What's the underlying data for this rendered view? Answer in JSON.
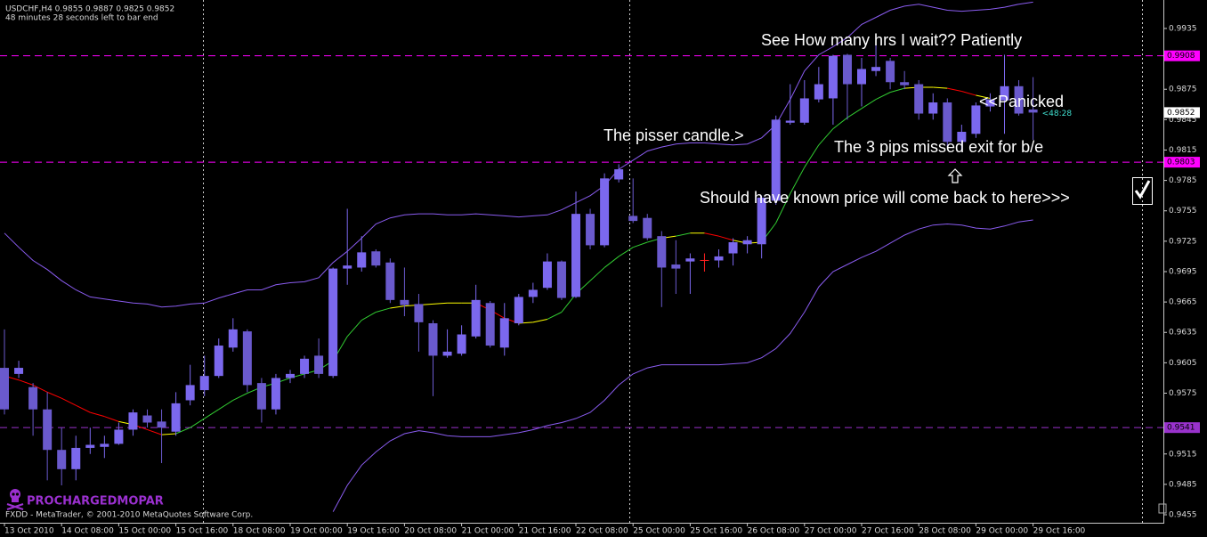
{
  "chart_data": {
    "type": "candlestick",
    "header": "USDCHF,H4  0.9855 0.9887 0.9825 0.9852",
    "countdown": "48 minutes 28 seconds left to bar end",
    "timer": "<48:28",
    "brand": "PROCHARGEDMOPAR",
    "copyright": "FXDD - MetaTrader, © 2001-2010 MetaQuotes Software Corp.",
    "annotations": [
      "See How many hrs I wait?? Patiently",
      "<<Panicked",
      "The pisser candle.>",
      "The 3 pips missed exit for b/e",
      "Should have known price will come back to here>>>"
    ],
    "categories": [
      "13 Oct 2010",
      null,
      null,
      null,
      "14 Oct 08:00",
      null,
      null,
      null,
      "15 Oct 00:00",
      null,
      null,
      null,
      "15 Oct 16:00",
      null,
      null,
      null,
      "18 Oct 08:00",
      null,
      null,
      null,
      "19 Oct 00:00",
      null,
      null,
      null,
      "19 Oct 16:00",
      null,
      null,
      null,
      "20 Oct 08:00",
      null,
      null,
      null,
      "21 Oct 00:00",
      null,
      null,
      null,
      "21 Oct 16:00",
      null,
      null,
      null,
      "22 Oct 08:00",
      null,
      null,
      null,
      "25 Oct 00:00",
      null,
      null,
      null,
      "25 Oct 16:00",
      null,
      null,
      null,
      "26 Oct 08:00",
      null,
      null,
      null,
      "27 Oct 00:00",
      null,
      null,
      null,
      "27 Oct 16:00",
      null,
      null,
      null,
      "28 Oct 08:00",
      null,
      null,
      null,
      "29 Oct 00:00",
      null,
      null,
      null,
      "29 Oct 16:00"
    ],
    "open": [
      0.96,
      0.9594,
      0.9581,
      0.9559,
      0.9519,
      0.95,
      0.9521,
      0.9522,
      0.9525,
      0.9539,
      0.9553,
      0.9547,
      0.9537,
      0.9568,
      0.9578,
      0.9592,
      0.962,
      0.9636,
      0.9585,
      0.9559,
      0.959,
      0.9594,
      0.9612,
      0.9592,
      0.9698,
      0.9699,
      0.9715,
      0.9704,
      0.9667,
      0.9663,
      0.9644,
      0.9612,
      0.9614,
      0.9631,
      0.9664,
      0.962,
      0.9644,
      0.967,
      0.9679,
      0.9705,
      0.967,
      0.9752,
      0.9721,
      0.9786,
      0.975,
      0.9748,
      0.973,
      0.9702,
      0.9705,
      0.9706,
      0.9706,
      0.9713,
      0.9722,
      0.9722,
      0.9765,
      0.9842,
      0.9842,
      0.9865,
      0.9866,
      0.9909,
      0.988,
      0.9893,
      0.9903,
      0.9882,
      0.988,
      0.9851,
      0.9862,
      0.9823,
      0.9831,
      0.9858,
      0.9864,
      0.9878,
      0.9855
    ],
    "high": [
      0.9638,
      0.9607,
      0.9585,
      0.9576,
      0.9541,
      0.9533,
      0.9541,
      0.9533,
      0.9546,
      0.9559,
      0.9559,
      0.9559,
      0.9576,
      0.9603,
      0.9612,
      0.9629,
      0.9649,
      0.9638,
      0.959,
      0.9594,
      0.9598,
      0.9612,
      0.9629,
      0.9699,
      0.9757,
      0.973,
      0.9717,
      0.9708,
      0.9699,
      0.9673,
      0.9647,
      0.9638,
      0.9642,
      0.9682,
      0.9666,
      0.9664,
      0.9673,
      0.9684,
      0.9713,
      0.9706,
      0.9774,
      0.9757,
      0.9792,
      0.9801,
      0.9787,
      0.9752,
      0.9735,
      0.9726,
      0.9713,
      0.9713,
      0.9717,
      0.9728,
      0.973,
      0.977,
      0.9849,
      0.988,
      0.9884,
      0.9897,
      0.9909,
      0.991,
      0.9906,
      0.9919,
      0.9906,
      0.9893,
      0.9884,
      0.9871,
      0.9866,
      0.984,
      0.9862,
      0.9871,
      0.9909,
      0.9884,
      0.9887
    ],
    "low": [
      0.9554,
      0.959,
      0.9533,
      0.9489,
      0.9484,
      0.9489,
      0.9515,
      0.9511,
      0.9524,
      0.9533,
      0.9541,
      0.9506,
      0.9533,
      0.9563,
      0.9572,
      0.959,
      0.9616,
      0.9576,
      0.9546,
      0.9554,
      0.9585,
      0.959,
      0.959,
      0.959,
      0.9682,
      0.9695,
      0.9699,
      0.9664,
      0.9651,
      0.9616,
      0.9572,
      0.961,
      0.9612,
      0.9629,
      0.962,
      0.9612,
      0.9642,
      0.9664,
      0.9677,
      0.9667,
      0.9669,
      0.9717,
      0.9719,
      0.9783,
      0.9743,
      0.9726,
      0.966,
      0.9673,
      0.9673,
      0.9695,
      0.9699,
      0.9701,
      0.9713,
      0.9708,
      0.9761,
      0.984,
      0.984,
      0.9862,
      0.984,
      0.9845,
      0.9858,
      0.9888,
      0.9875,
      0.9875,
      0.9845,
      0.9845,
      0.9818,
      0.9814,
      0.9827,
      0.9853,
      0.9831,
      0.9849,
      0.9825
    ],
    "close": [
      0.9559,
      0.96,
      0.9559,
      0.9519,
      0.95,
      0.9521,
      0.9524,
      0.9525,
      0.9539,
      0.9556,
      0.9546,
      0.9541,
      0.9565,
      0.9583,
      0.9592,
      0.9622,
      0.9638,
      0.9583,
      0.9559,
      0.959,
      0.9594,
      0.9609,
      0.9594,
      0.9698,
      0.9701,
      0.9714,
      0.9701,
      0.9667,
      0.9662,
      0.9645,
      0.9612,
      0.9616,
      0.9633,
      0.9667,
      0.9622,
      0.9649,
      0.967,
      0.9677,
      0.9705,
      0.9669,
      0.9752,
      0.9721,
      0.9787,
      0.9796,
      0.9745,
      0.9728,
      0.9699,
      0.9698,
      0.9708,
      0.9706,
      0.971,
      0.9724,
      0.9726,
      0.9768,
      0.9845,
      0.9844,
      0.9866,
      0.988,
      0.9908,
      0.988,
      0.9895,
      0.9897,
      0.9882,
      0.9879,
      0.9851,
      0.9862,
      0.9823,
      0.9833,
      0.9859,
      0.9865,
      0.9878,
      0.9851,
      0.9852
    ],
    "up_color": "#7b68ee",
    "down_color": "#6a5acd",
    "doji_color": "#ff2020",
    "bands": {
      "color": "#8a5cf0",
      "upper": [
        0.9733,
        0.9719,
        0.9706,
        0.9697,
        0.9686,
        0.9677,
        0.967,
        0.9668,
        0.9666,
        0.9664,
        0.9663,
        0.966,
        0.9661,
        0.9663,
        0.9664,
        0.9669,
        0.9673,
        0.9677,
        0.9677,
        0.9682,
        0.9684,
        0.9685,
        0.9689,
        0.9704,
        0.9715,
        0.9728,
        0.9742,
        0.9748,
        0.9751,
        0.9752,
        0.9752,
        0.9751,
        0.9751,
        0.9752,
        0.9751,
        0.975,
        0.9749,
        0.975,
        0.9751,
        0.9756,
        0.9763,
        0.977,
        0.978,
        0.9796,
        0.9805,
        0.9814,
        0.9818,
        0.9821,
        0.9822,
        0.9822,
        0.9821,
        0.982,
        0.9821,
        0.9827,
        0.984,
        0.9865,
        0.9893,
        0.9909,
        0.9917,
        0.9926,
        0.9939,
        0.9946,
        0.9953,
        0.9957,
        0.9959,
        0.9956,
        0.9953,
        0.9952,
        0.9953,
        0.9954,
        0.9956,
        0.9959,
        0.9961
      ],
      "lower": [
        null,
        null,
        null,
        null,
        null,
        null,
        null,
        null,
        null,
        null,
        null,
        null,
        null,
        null,
        null,
        null,
        null,
        null,
        null,
        null,
        null,
        null,
        null,
        0.9458,
        0.9484,
        0.9504,
        0.9517,
        0.9528,
        0.9535,
        0.9538,
        0.9536,
        0.9533,
        0.9532,
        0.9532,
        0.9532,
        0.9534,
        0.9536,
        0.9539,
        0.9543,
        0.9546,
        0.955,
        0.9556,
        0.9568,
        0.9583,
        0.9594,
        0.96,
        0.9603,
        0.9603,
        0.9603,
        0.9603,
        0.9603,
        0.9604,
        0.9605,
        0.961,
        0.9619,
        0.9634,
        0.9655,
        0.968,
        0.9695,
        0.9702,
        0.9709,
        0.9715,
        0.9723,
        0.9731,
        0.9737,
        0.9741,
        0.9742,
        0.9741,
        0.9738,
        0.9737,
        0.974,
        0.9744,
        0.9746
      ]
    },
    "ma": {
      "up_color": "#32cd32",
      "down_color": "#ff0000",
      "flat_color": "#ffff00",
      "values": [
        0.9592,
        0.9588,
        0.9583,
        0.9576,
        0.957,
        0.9563,
        0.9556,
        0.9552,
        0.9547,
        0.9544,
        0.9539,
        0.9534,
        0.9535,
        0.9541,
        0.955,
        0.9559,
        0.9568,
        0.9575,
        0.9581,
        0.9585,
        0.959,
        0.9594,
        0.9598,
        0.9607,
        0.9631,
        0.9647,
        0.9655,
        0.9659,
        0.9661,
        0.9662,
        0.9663,
        0.9664,
        0.9664,
        0.9664,
        0.9657,
        0.9649,
        0.9644,
        0.9645,
        0.9648,
        0.9655,
        0.9673,
        0.9686,
        0.9699,
        0.971,
        0.9719,
        0.9724,
        0.9728,
        0.973,
        0.9733,
        0.9733,
        0.973,
        0.9726,
        0.9723,
        0.9724,
        0.9743,
        0.9772,
        0.9798,
        0.982,
        0.9836,
        0.9847,
        0.9856,
        0.9865,
        0.9872,
        0.9876,
        0.9877,
        0.9877,
        0.9876,
        0.9873,
        0.9869,
        0.9866,
        null,
        null,
        null
      ]
    },
    "levels": [
      {
        "value": 0.9908,
        "color": "#ff00ff"
      },
      {
        "value": 0.9803,
        "color": "#ff00ff"
      },
      {
        "value": 0.9541,
        "color": "#9932cc"
      }
    ],
    "ylim": [
      0.94471,
      0.99631
    ],
    "yticks": [
      0.9935,
      0.9875,
      0.9845,
      0.9815,
      0.9785,
      0.9755,
      0.9725,
      0.9695,
      0.9665,
      0.9635,
      0.9605,
      0.9575,
      0.9515,
      0.9485,
      0.9455
    ],
    "grid": false
  }
}
